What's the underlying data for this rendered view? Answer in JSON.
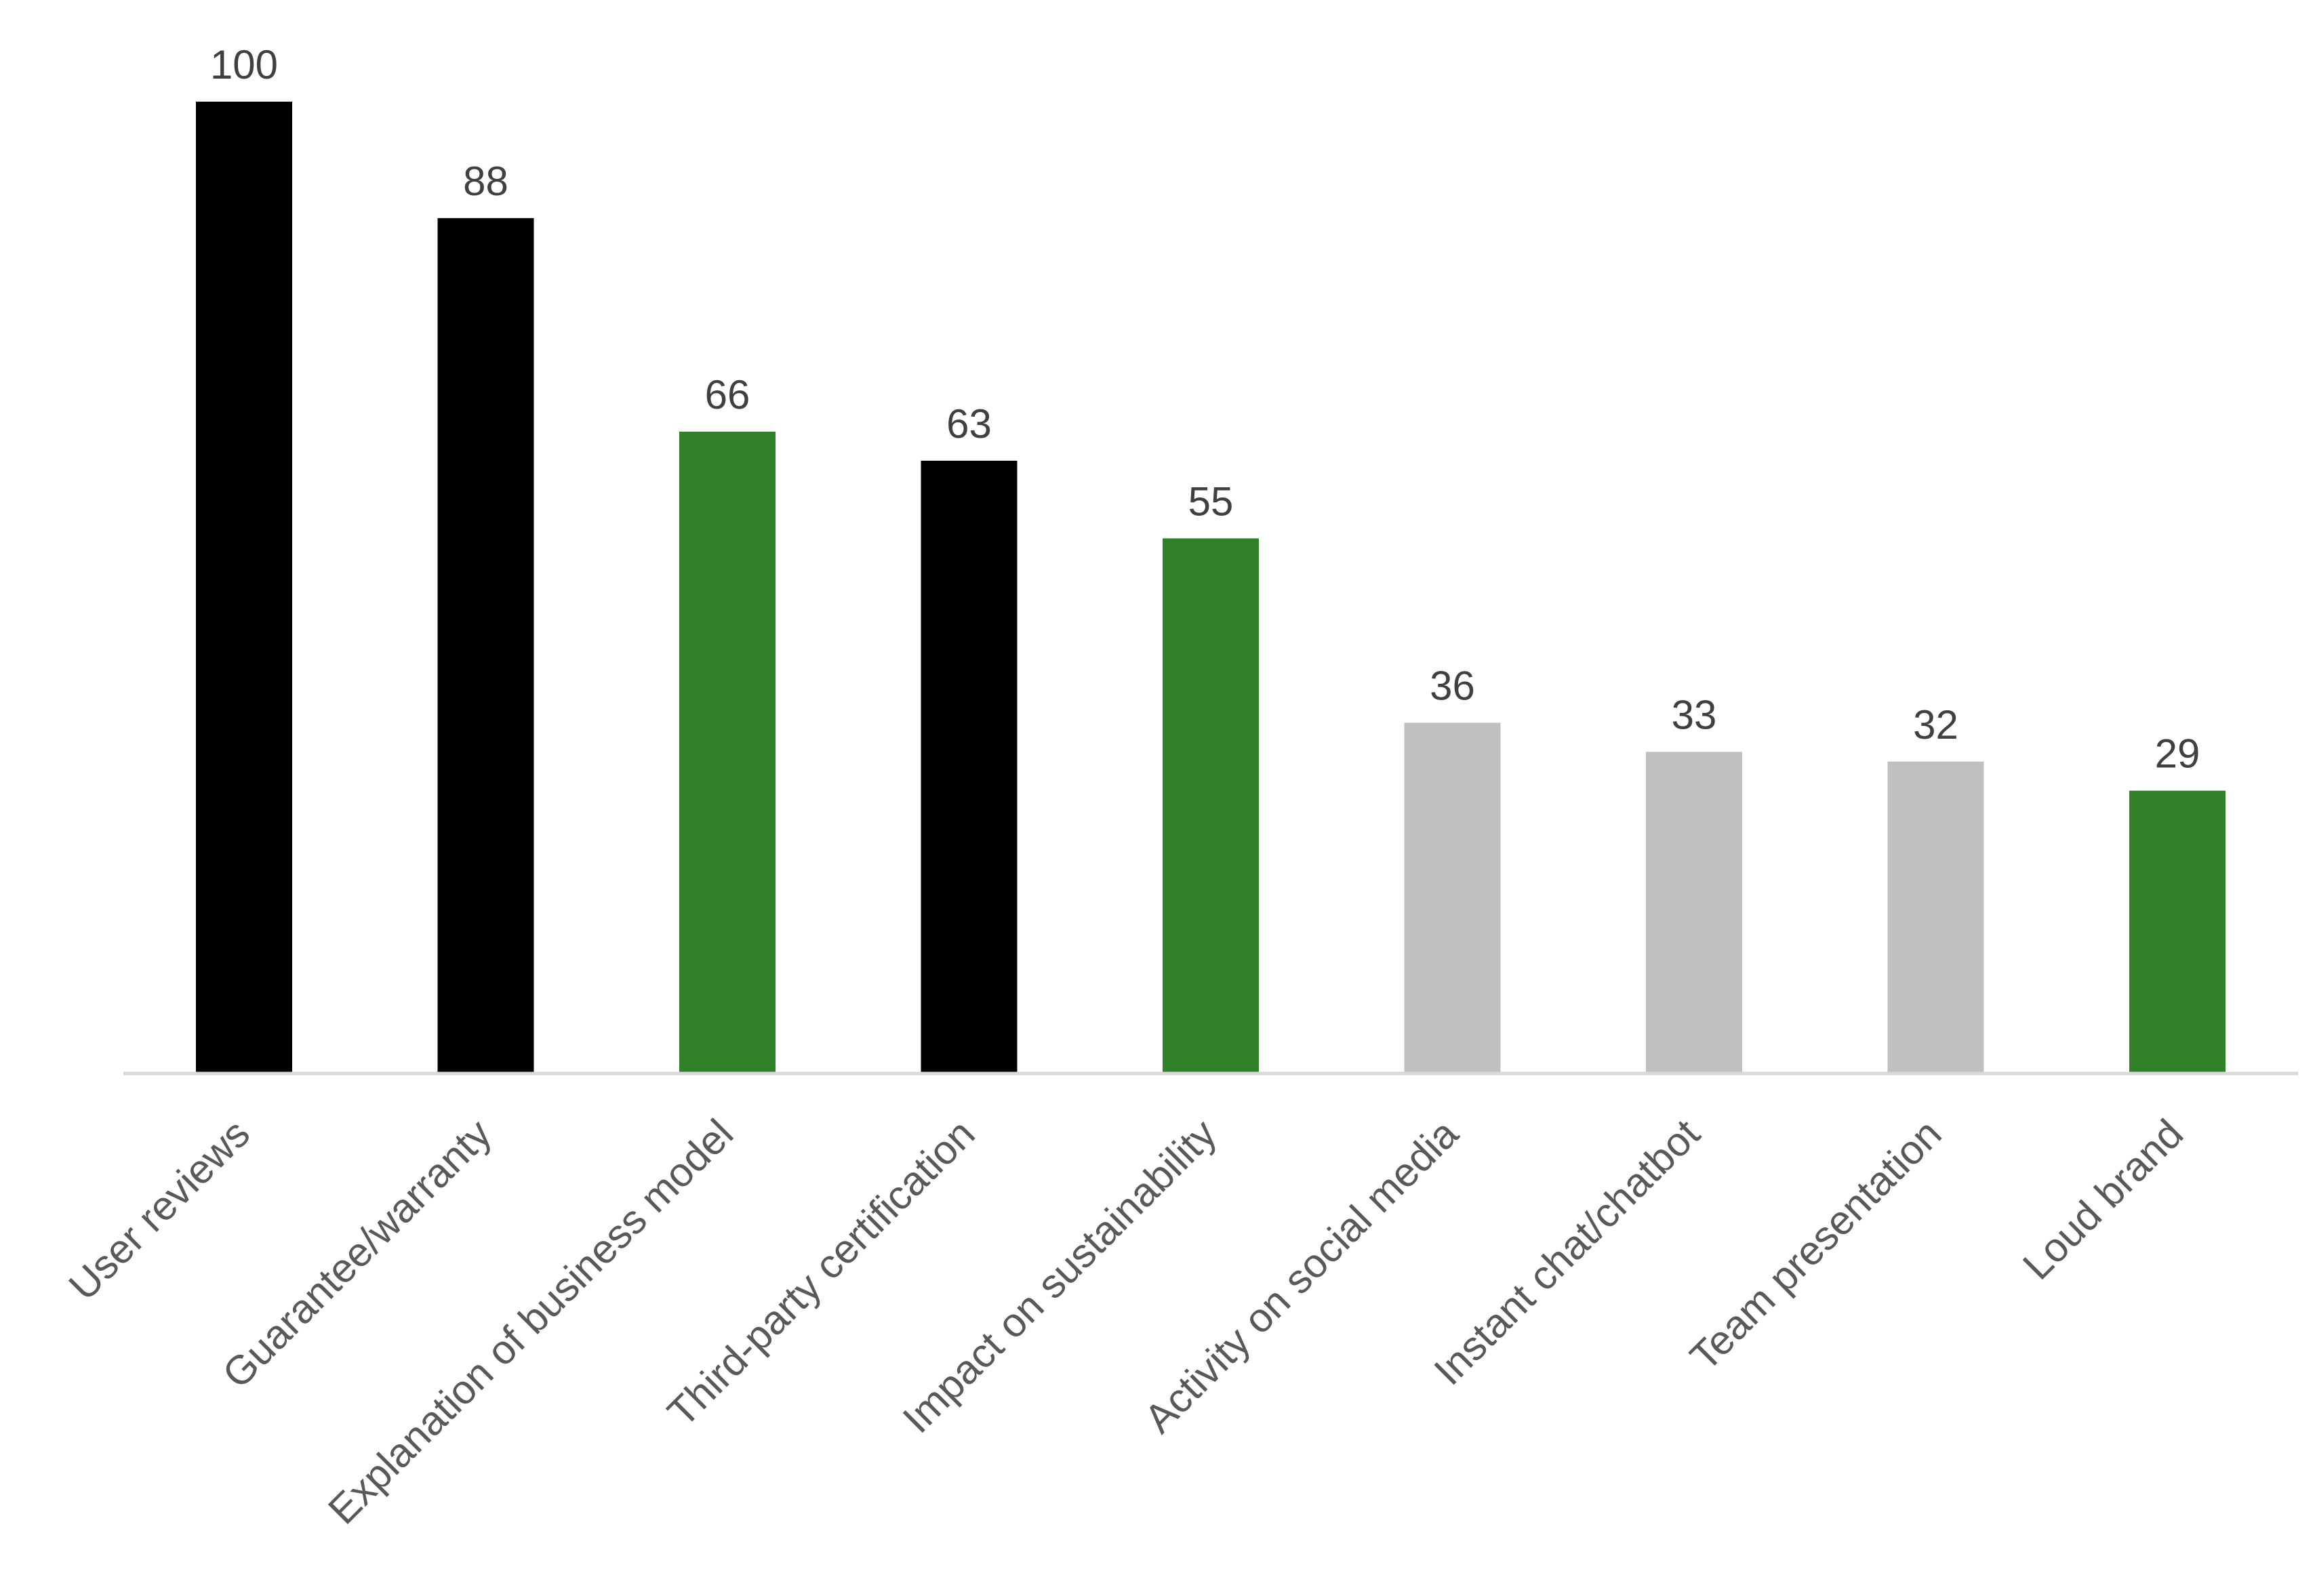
{
  "chart_data": {
    "type": "bar",
    "title": "",
    "xlabel": "",
    "ylabel": "",
    "ylim": [
      0,
      100
    ],
    "grid": false,
    "legend": "none",
    "categories": [
      "User reviews",
      "Guarantee/warranty",
      "Explanation of business model",
      "Third-party certification",
      "Impact on sustainability",
      "Activity on social media",
      "Instant chat/chatbot",
      "Team presentation",
      "Loud brand"
    ],
    "values": [
      100,
      88,
      66,
      63,
      55,
      36,
      33,
      32,
      29
    ],
    "bar_colors": [
      "#000000",
      "#000000",
      "#31812B",
      "#000000",
      "#31812B",
      "#C0C0C0",
      "#C0C0C0",
      "#C0C0C0",
      "#31812B"
    ],
    "axis_color": "#D9D9D9",
    "value_label_color": "#404040",
    "category_label_color": "#595959"
  }
}
